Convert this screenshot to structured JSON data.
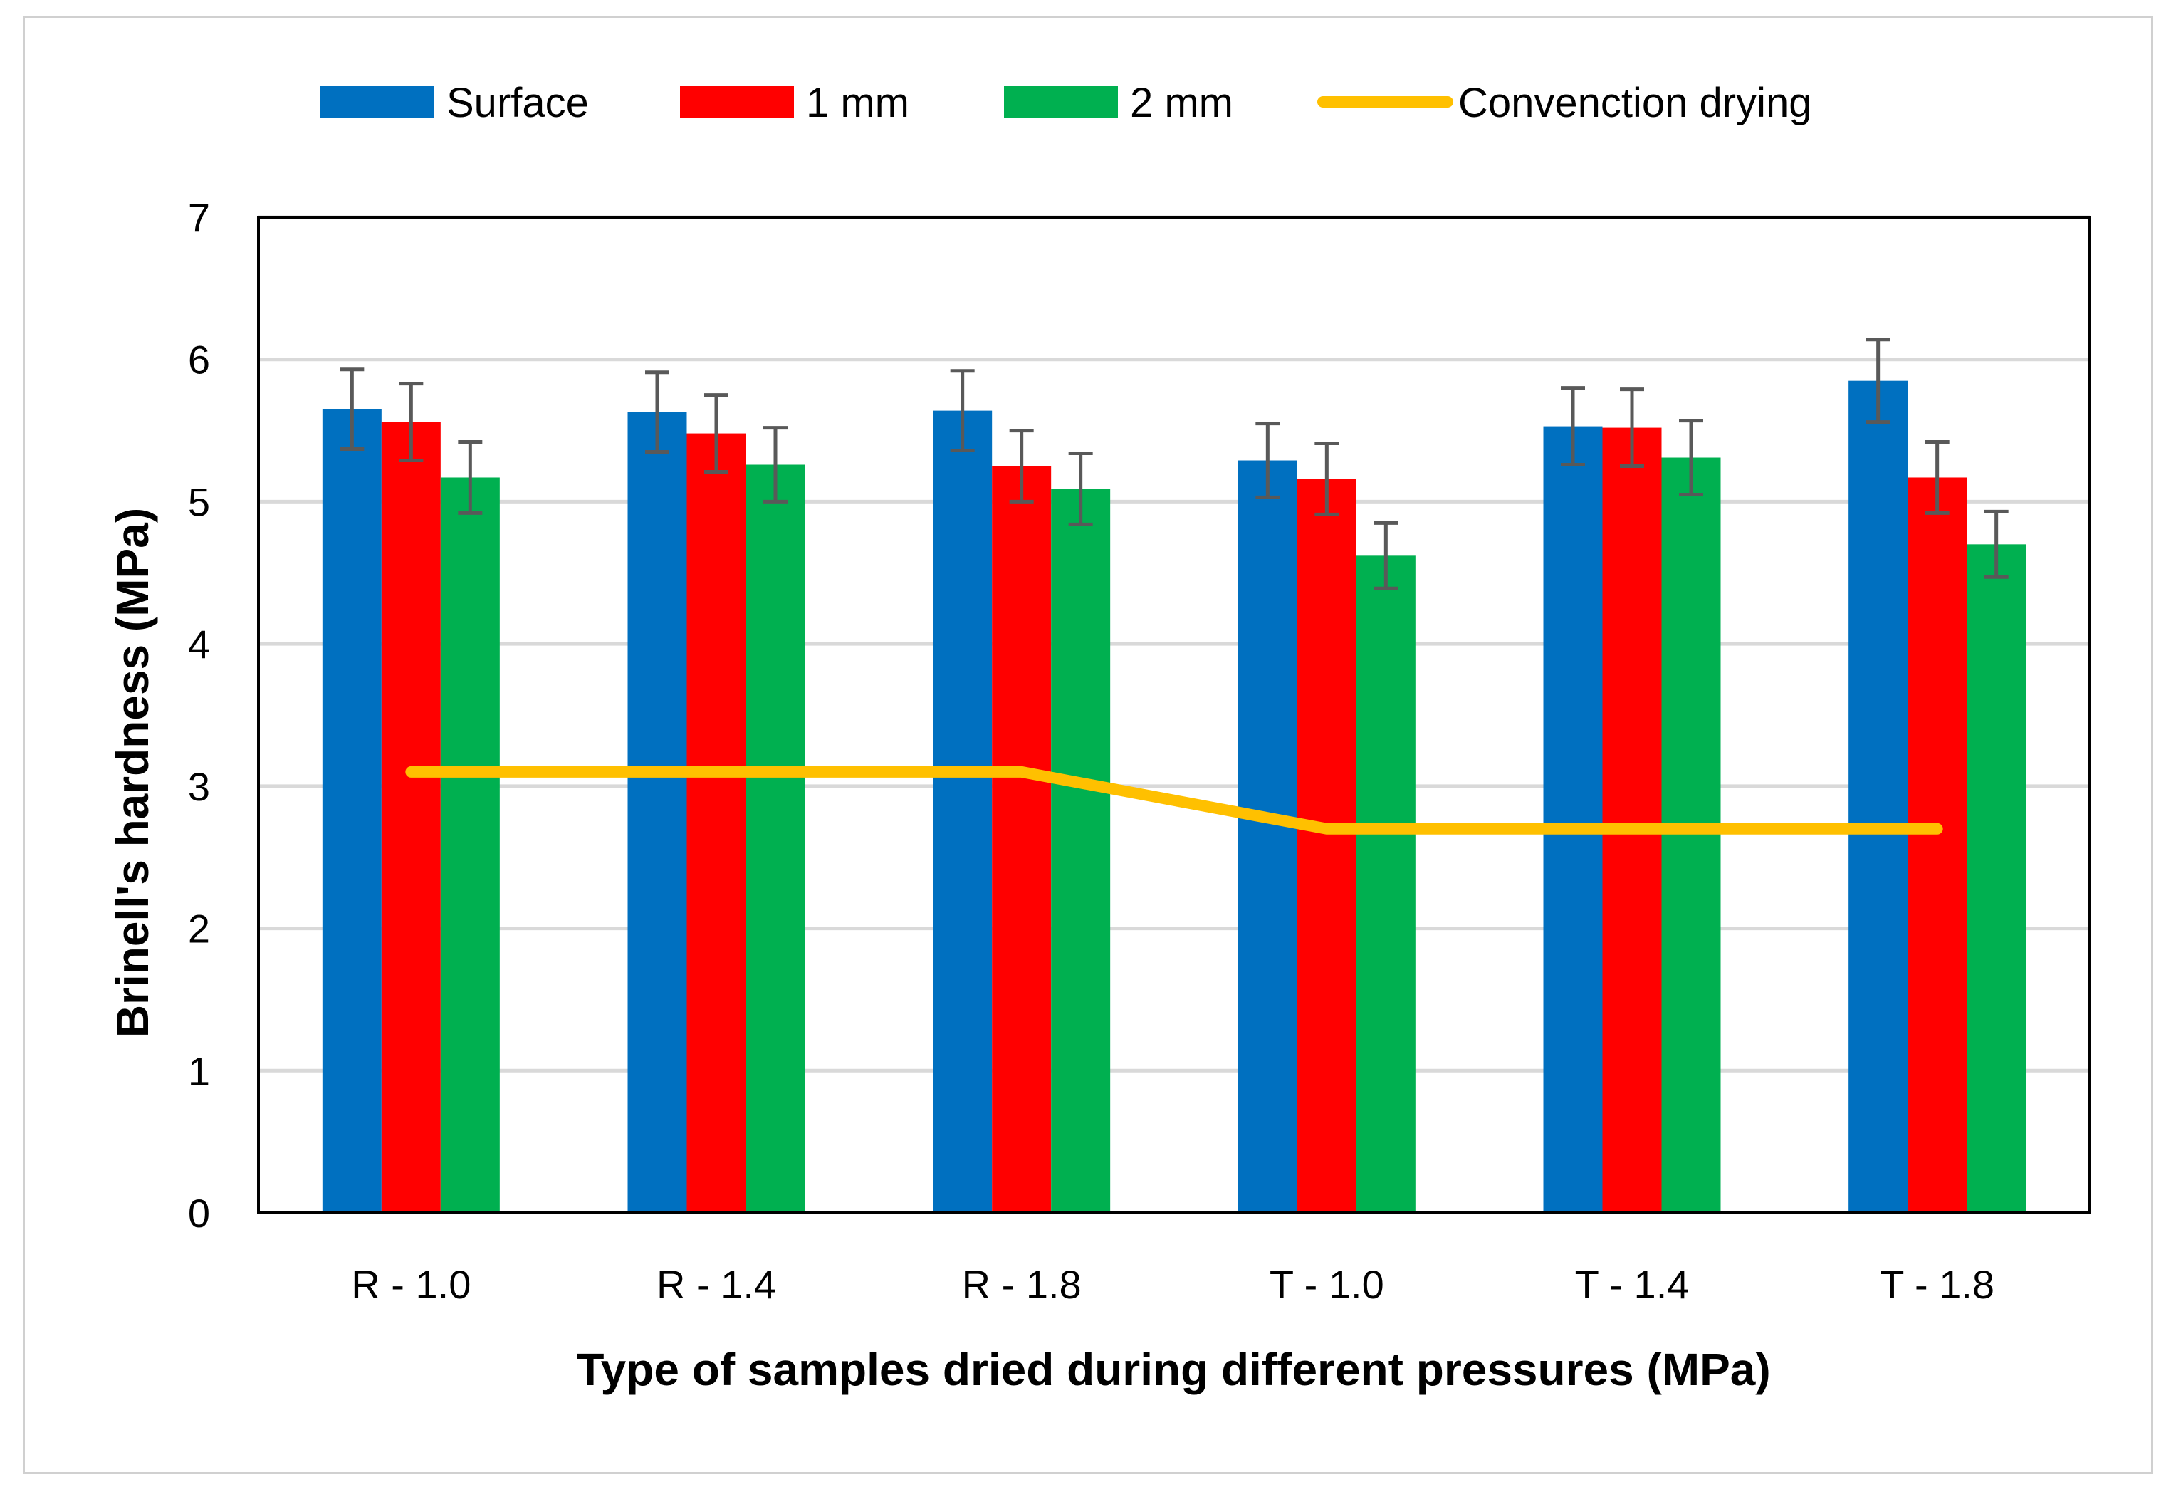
{
  "chart_data": {
    "type": "bar",
    "title": "",
    "xlabel": "Type of samples dried during different pressures (MPa)",
    "ylabel": "Brinell's hardness  (MPa)",
    "ylim": [
      0,
      7
    ],
    "yticks": [
      "0",
      "1",
      "2",
      "3",
      "4",
      "5",
      "6",
      "7"
    ],
    "grid": true,
    "legend_position": "top",
    "categories": [
      "R - 1.0",
      "R - 1.4",
      "R - 1.8",
      "T - 1.0",
      "T - 1.4",
      "T - 1.8"
    ],
    "series": [
      {
        "name": "Surface",
        "type": "bar",
        "color": "#0070C0",
        "values": [
          5.65,
          5.63,
          5.64,
          5.29,
          5.53,
          5.85
        ],
        "error": [
          0.28,
          0.28,
          0.28,
          0.26,
          0.27,
          0.29
        ]
      },
      {
        "name": "1 mm",
        "type": "bar",
        "color": "#FF0000",
        "values": [
          5.56,
          5.48,
          5.25,
          5.16,
          5.52,
          5.17
        ],
        "error": [
          0.27,
          0.27,
          0.25,
          0.25,
          0.27,
          0.25
        ]
      },
      {
        "name": "2 mm",
        "type": "bar",
        "color": "#00B050",
        "values": [
          5.17,
          5.26,
          5.09,
          4.62,
          5.31,
          4.7
        ],
        "error": [
          0.25,
          0.26,
          0.25,
          0.23,
          0.26,
          0.23
        ]
      },
      {
        "name": "Convenction drying",
        "type": "line",
        "color": "#FFC000",
        "values": [
          3.1,
          3.1,
          3.1,
          2.7,
          2.7,
          2.7
        ]
      }
    ],
    "error_bar_color": "#595959"
  }
}
